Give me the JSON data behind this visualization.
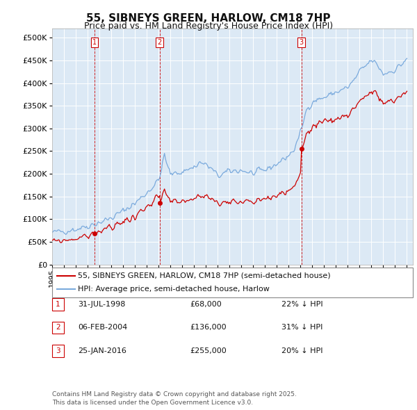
{
  "title": "55, SIBNEYS GREEN, HARLOW, CM18 7HP",
  "subtitle": "Price paid vs. HM Land Registry's House Price Index (HPI)",
  "ytick_values": [
    0,
    50000,
    100000,
    150000,
    200000,
    250000,
    300000,
    350000,
    400000,
    450000,
    500000
  ],
  "ylim": [
    0,
    520000
  ],
  "xlim_start": 1995.0,
  "xlim_end": 2025.5,
  "plot_bg_color": "#dce9f5",
  "grid_color": "#ffffff",
  "sale_points": [
    {
      "year": 1998.58,
      "price": 68000,
      "label": "1"
    },
    {
      "year": 2004.09,
      "price": 136000,
      "label": "2"
    },
    {
      "year": 2016.07,
      "price": 255000,
      "label": "3"
    }
  ],
  "sale_vlines_color": "#cc0000",
  "sale_dot_color": "#cc0000",
  "hpi_line_color": "#7aaadd",
  "price_line_color": "#cc0000",
  "legend_label_price": "55, SIBNEYS GREEN, HARLOW, CM18 7HP (semi-detached house)",
  "legend_label_hpi": "HPI: Average price, semi-detached house, Harlow",
  "table_entries": [
    {
      "num": "1",
      "date": "31-JUL-1998",
      "price": "£68,000",
      "hpi": "22% ↓ HPI"
    },
    {
      "num": "2",
      "date": "06-FEB-2004",
      "price": "£136,000",
      "hpi": "31% ↓ HPI"
    },
    {
      "num": "3",
      "date": "25-JAN-2016",
      "price": "£255,000",
      "hpi": "20% ↓ HPI"
    }
  ],
  "footer": "Contains HM Land Registry data © Crown copyright and database right 2025.\nThis data is licensed under the Open Government Licence v3.0.",
  "title_fontsize": 11,
  "subtitle_fontsize": 9,
  "tick_fontsize": 8,
  "legend_fontsize": 8,
  "table_fontsize": 8,
  "footer_fontsize": 6.5
}
